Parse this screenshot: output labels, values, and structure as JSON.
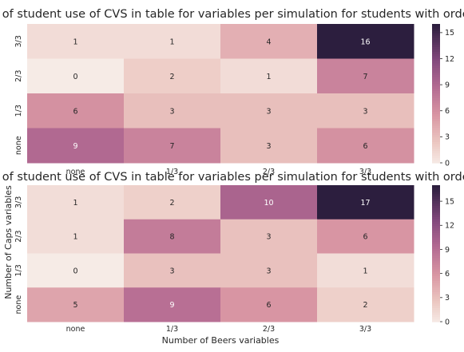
{
  "chart_data": [
    {
      "type": "heatmap",
      "title": "Map of student use of CVS in table for variables per simulation for students with order CL",
      "x_categories": [
        "none",
        "1/3",
        "2/3",
        "3/3"
      ],
      "y_categories": [
        "3/3",
        "2/3",
        "1/3",
        "none"
      ],
      "values": [
        [
          1,
          1,
          4,
          16
        ],
        [
          0,
          2,
          1,
          7
        ],
        [
          6,
          3,
          3,
          3
        ],
        [
          9,
          7,
          3,
          6
        ]
      ],
      "xlabel": "",
      "ylabel": "",
      "colorbar": {
        "min": 0,
        "max": 16,
        "ticks": [
          "0",
          "3",
          "6",
          "9",
          "12",
          "15"
        ]
      }
    },
    {
      "type": "heatmap",
      "title": "Map of student use of CVS in table for variables per simulation for students with order LC",
      "x_categories": [
        "none",
        "1/3",
        "2/3",
        "3/3"
      ],
      "y_categories": [
        "3/3",
        "2/3",
        "1/3",
        "none"
      ],
      "values": [
        [
          1,
          2,
          10,
          17
        ],
        [
          1,
          8,
          3,
          6
        ],
        [
          0,
          3,
          3,
          1
        ],
        [
          5,
          9,
          6,
          2
        ]
      ],
      "xlabel": "Number of Beers variables",
      "ylabel": "Number of Caps variables",
      "colorbar": {
        "min": 0,
        "max": 17,
        "ticks": [
          "0",
          "3",
          "6",
          "9",
          "12",
          "15"
        ]
      }
    }
  ]
}
